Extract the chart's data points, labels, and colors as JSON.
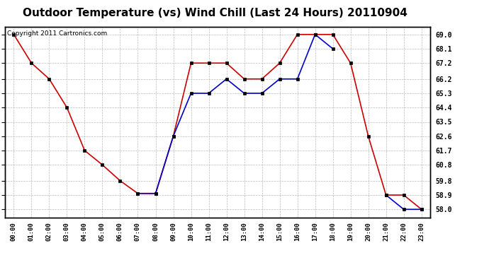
{
  "title": "Outdoor Temperature (vs) Wind Chill (Last 24 Hours) 20110904",
  "copyright_text": "Copyright 2011 Cartronics.com",
  "hours": [
    "00:00",
    "01:00",
    "02:00",
    "03:00",
    "04:00",
    "05:00",
    "06:00",
    "07:00",
    "08:00",
    "09:00",
    "10:00",
    "11:00",
    "12:00",
    "13:00",
    "14:00",
    "15:00",
    "16:00",
    "17:00",
    "18:00",
    "19:00",
    "20:00",
    "21:00",
    "22:00",
    "23:00"
  ],
  "temp_red": [
    69.0,
    67.2,
    66.2,
    64.4,
    61.7,
    60.8,
    59.8,
    59.0,
    59.0,
    62.6,
    67.2,
    67.2,
    67.2,
    66.2,
    66.2,
    67.2,
    69.0,
    69.0,
    69.0,
    67.2,
    62.6,
    58.9,
    58.9,
    58.0
  ],
  "wind_chill_blue": [
    null,
    null,
    null,
    null,
    null,
    null,
    null,
    59.0,
    59.0,
    62.6,
    65.3,
    65.3,
    66.2,
    65.3,
    65.3,
    66.2,
    66.2,
    69.0,
    68.1,
    null,
    null,
    58.9,
    58.0,
    58.0
  ],
  "ylim_min": 57.5,
  "ylim_max": 69.5,
  "yticks": [
    58.0,
    58.9,
    59.8,
    60.8,
    61.7,
    62.6,
    63.5,
    64.4,
    65.3,
    66.2,
    67.2,
    68.1,
    69.0
  ],
  "red_color": "#cc0000",
  "blue_color": "#0000cc",
  "background_color": "#ffffff",
  "grid_color": "#bbbbbb",
  "title_fontsize": 11,
  "copyright_fontsize": 6.5
}
